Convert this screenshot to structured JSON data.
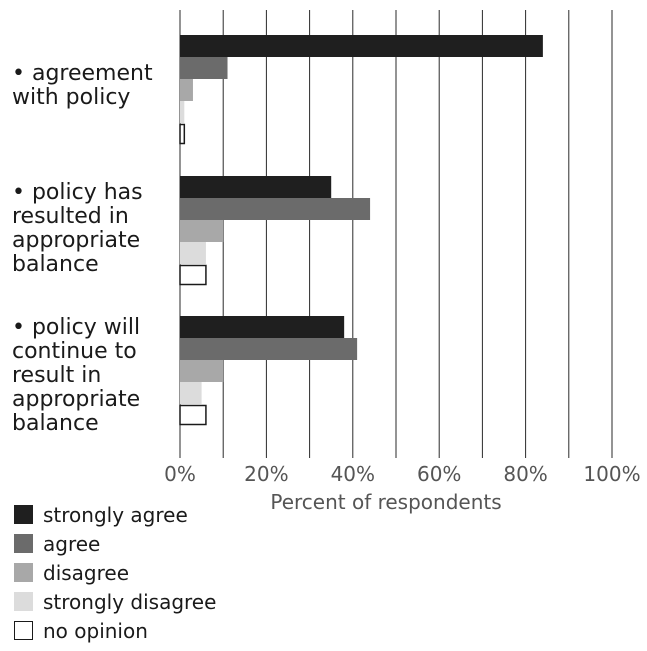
{
  "chart_data": {
    "type": "bar",
    "orientation": "horizontal",
    "xlabel": "Percent of respondents",
    "xlim": [
      0,
      100
    ],
    "x_ticks": [
      "0%",
      "20%",
      "40%",
      "60%",
      "80%",
      "100%"
    ],
    "grid": true,
    "categories": [
      "• agreement\nwith policy",
      "• policy has\nresulted in\nappropriate\nbalance",
      "• policy will\ncontinue to\nresult in\nappropriate\nbalance"
    ],
    "series": [
      {
        "name": "strongly agree",
        "color": "#1f1f1f",
        "values": [
          84,
          35,
          38
        ]
      },
      {
        "name": "agree",
        "color": "#6b6b6b",
        "values": [
          11,
          44,
          41
        ]
      },
      {
        "name": "disagree",
        "color": "#a8a8a8",
        "values": [
          3,
          10,
          10
        ]
      },
      {
        "name": "strongly disagree",
        "color": "#dcdcdc",
        "values": [
          1,
          6,
          5
        ]
      },
      {
        "name": "no opinion",
        "color": "#ffffff",
        "values": [
          1,
          6,
          6
        ]
      }
    ],
    "legend_position": "bottom-left"
  }
}
